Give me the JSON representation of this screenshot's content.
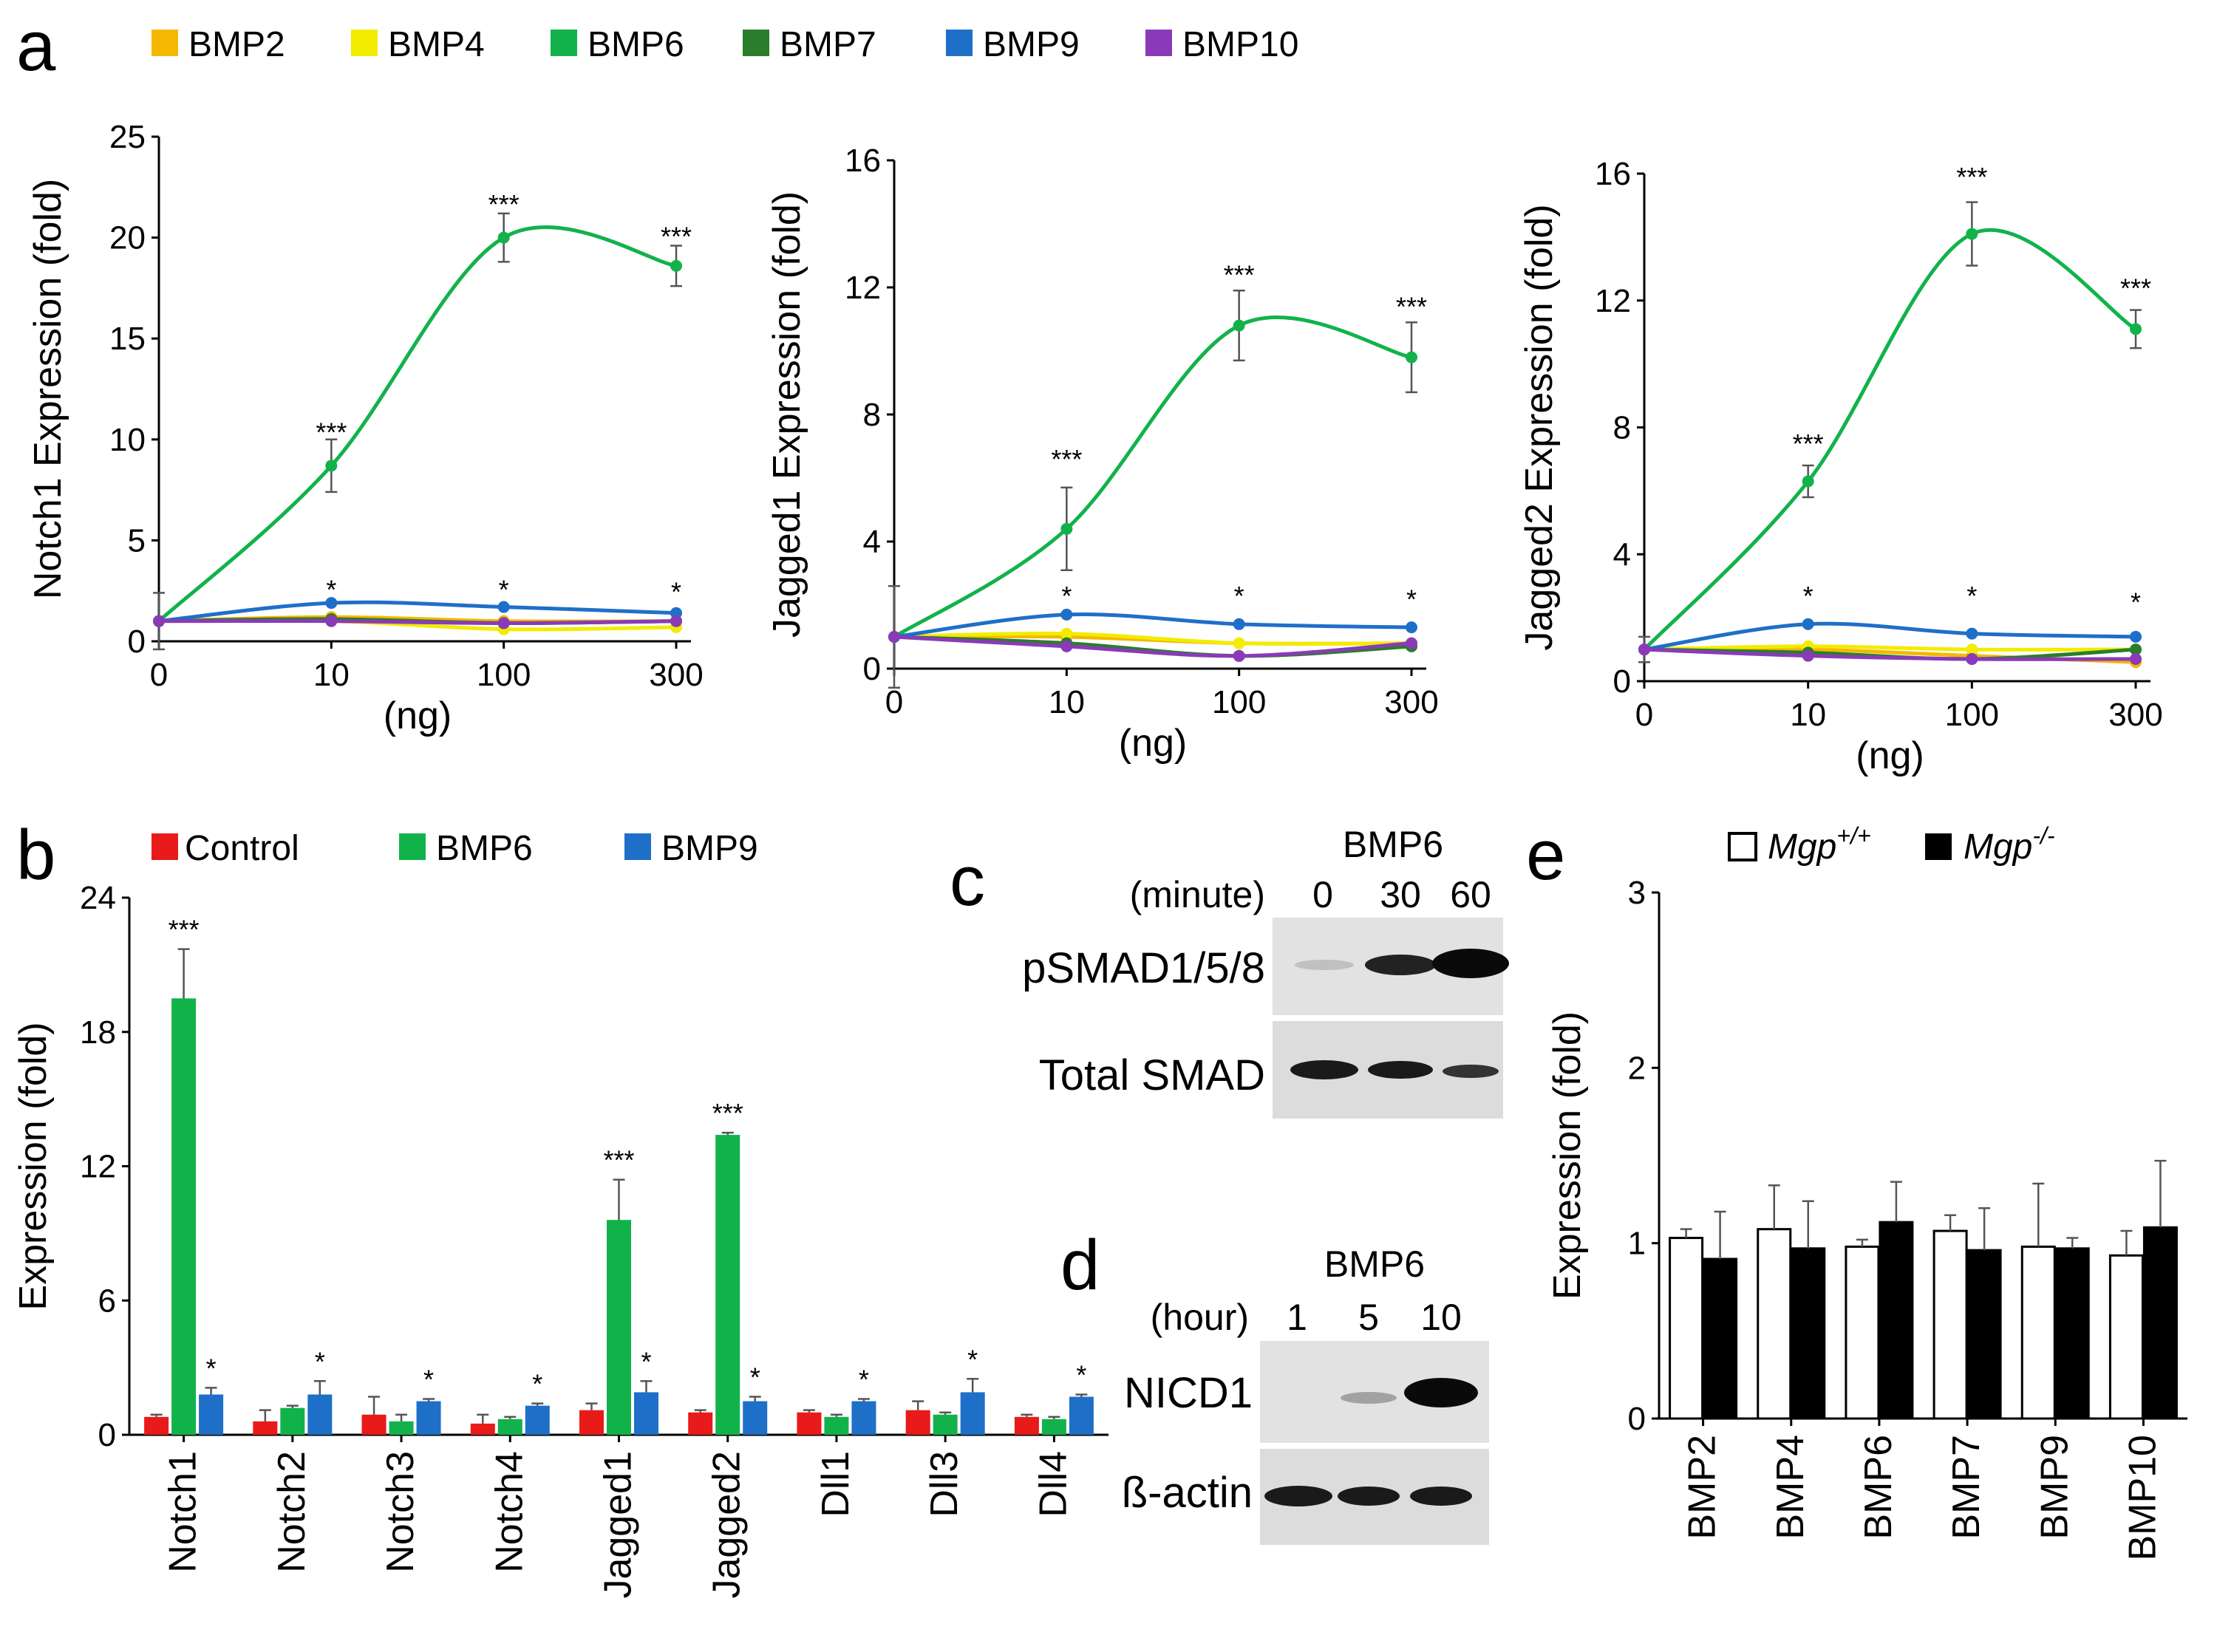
{
  "panels": {
    "a": "a",
    "b": "b",
    "c": "c",
    "d": "d",
    "e": "e"
  },
  "colors": {
    "BMP2": "#F5B800",
    "BMP4": "#F2EC00",
    "BMP6": "#12B24B",
    "BMP7": "#2A7D2A",
    "BMP9": "#1E6FC8",
    "BMP10": "#8A3AB9",
    "Control": "#E81A1A",
    "wt": "#ffffff",
    "ko": "#000000"
  },
  "panel_a_legend": [
    "BMP2",
    "BMP4",
    "BMP6",
    "BMP7",
    "BMP9",
    "BMP10"
  ],
  "panel_b_legend": [
    "Control",
    "BMP6",
    "BMP9"
  ],
  "panel_c": {
    "title": "BMP6",
    "time_label": "(minute)",
    "times": [
      "0",
      "30",
      "60"
    ],
    "rows": [
      "pSMAD1/5/8",
      "Total SMAD"
    ]
  },
  "panel_d": {
    "title": "BMP6",
    "time_label": "(hour)",
    "times": [
      "1",
      "5",
      "10"
    ],
    "rows": [
      "NICD1",
      "ß-actin"
    ]
  },
  "panel_e_legend": {
    "wt_base": "Mgp",
    "wt_sup": "+/+",
    "ko_base": "Mgp",
    "ko_sup": "-/-"
  },
  "chart_data": [
    {
      "id": "a1",
      "type": "line",
      "ylabel": "Notch1 Expression (fold)",
      "xlabel": "(ng)",
      "x": [
        "0",
        "10",
        "100",
        "300"
      ],
      "ylim": [
        0,
        25
      ],
      "yticks": [
        0,
        5,
        10,
        15,
        20,
        25
      ],
      "series": [
        {
          "name": "BMP2",
          "values": [
            1,
            1.2,
            1.0,
            1.0
          ]
        },
        {
          "name": "BMP4",
          "values": [
            1,
            1.0,
            0.6,
            0.7
          ]
        },
        {
          "name": "BMP6",
          "values": [
            1,
            8.7,
            20.0,
            18.6
          ],
          "err": [
            1.4,
            1.3,
            1.2,
            1.0
          ]
        },
        {
          "name": "BMP7",
          "values": [
            1,
            1.1,
            0.9,
            1.0
          ]
        },
        {
          "name": "BMP9",
          "values": [
            1,
            1.9,
            1.7,
            1.4
          ]
        },
        {
          "name": "BMP10",
          "values": [
            1,
            1.0,
            0.9,
            1.0
          ]
        }
      ],
      "annotations": [
        {
          "x": "10",
          "y": 9.9,
          "text": "***"
        },
        {
          "x": "100",
          "y": 21.2,
          "text": "***"
        },
        {
          "x": "300",
          "y": 19.6,
          "text": "***"
        },
        {
          "x": "10",
          "y": 2.1,
          "text": "*"
        },
        {
          "x": "100",
          "y": 2.1,
          "text": "*"
        },
        {
          "x": "300",
          "y": 2.0,
          "text": "*"
        }
      ]
    },
    {
      "id": "a2",
      "type": "line",
      "ylabel": "Jagged1 Expression (fold)",
      "xlabel": "(ng)",
      "x": [
        "0",
        "10",
        "100",
        "300"
      ],
      "ylim": [
        0,
        16
      ],
      "yticks": [
        0,
        4,
        8,
        12,
        16
      ],
      "series": [
        {
          "name": "BMP2",
          "values": [
            1,
            1.0,
            0.8,
            0.8
          ]
        },
        {
          "name": "BMP4",
          "values": [
            1,
            1.1,
            0.8,
            0.8
          ]
        },
        {
          "name": "BMP6",
          "values": [
            1,
            4.4,
            10.8,
            9.8
          ],
          "err": [
            1.6,
            1.3,
            1.1,
            1.1
          ]
        },
        {
          "name": "BMP7",
          "values": [
            1,
            0.8,
            0.4,
            0.7
          ]
        },
        {
          "name": "BMP9",
          "values": [
            1,
            1.7,
            1.4,
            1.3
          ]
        },
        {
          "name": "BMP10",
          "values": [
            1,
            0.7,
            0.4,
            0.8
          ]
        }
      ],
      "annotations": [
        {
          "x": "10",
          "y": 6.3,
          "text": "***"
        },
        {
          "x": "100",
          "y": 12.1,
          "text": "***"
        },
        {
          "x": "300",
          "y": 11.1,
          "text": "***"
        },
        {
          "x": "10",
          "y": 2.0,
          "text": "*"
        },
        {
          "x": "100",
          "y": 2.0,
          "text": "*"
        },
        {
          "x": "300",
          "y": 1.9,
          "text": "*"
        }
      ]
    },
    {
      "id": "a3",
      "type": "line",
      "ylabel": "Jagged2 Expression (fold)",
      "xlabel": "(ng)",
      "x": [
        "0",
        "10",
        "100",
        "300"
      ],
      "ylim": [
        0,
        16
      ],
      "yticks": [
        0,
        4,
        8,
        12,
        16
      ],
      "series": [
        {
          "name": "BMP2",
          "values": [
            1,
            1.0,
            0.8,
            0.6
          ]
        },
        {
          "name": "BMP4",
          "values": [
            1,
            1.1,
            1.0,
            1.0
          ]
        },
        {
          "name": "BMP6",
          "values": [
            1,
            6.3,
            14.1,
            11.1
          ],
          "err": [
            0.4,
            0.5,
            1.0,
            0.6
          ]
        },
        {
          "name": "BMP7",
          "values": [
            1,
            0.9,
            0.7,
            1.0
          ]
        },
        {
          "name": "BMP9",
          "values": [
            1,
            1.8,
            1.5,
            1.4
          ]
        },
        {
          "name": "BMP10",
          "values": [
            1,
            0.8,
            0.7,
            0.7
          ]
        }
      ],
      "annotations": [
        {
          "x": "10",
          "y": 7.2,
          "text": "***"
        },
        {
          "x": "100",
          "y": 15.6,
          "text": "***"
        },
        {
          "x": "300",
          "y": 12.1,
          "text": "***"
        },
        {
          "x": "10",
          "y": 2.4,
          "text": "*"
        },
        {
          "x": "100",
          "y": 2.4,
          "text": "*"
        },
        {
          "x": "300",
          "y": 2.2,
          "text": "*"
        }
      ]
    },
    {
      "id": "b",
      "type": "bar",
      "ylabel": "Expression (fold)",
      "categories": [
        "Notch1",
        "Notch2",
        "Notch3",
        "Notch4",
        "Jagged1",
        "Jagged2",
        "Dll1",
        "Dll3",
        "Dll4"
      ],
      "ylim": [
        0,
        24
      ],
      "yticks": [
        0,
        6,
        12,
        18,
        24
      ],
      "series": [
        {
          "name": "Control",
          "values": [
            0.8,
            0.6,
            0.9,
            0.5,
            1.1,
            1.0,
            1.0,
            1.1,
            0.8
          ],
          "err": [
            0.1,
            0.5,
            0.8,
            0.4,
            0.3,
            0.1,
            0.1,
            0.4,
            0.1
          ]
        },
        {
          "name": "BMP6",
          "values": [
            19.5,
            1.2,
            0.6,
            0.7,
            9.6,
            13.4,
            0.8,
            0.9,
            0.7
          ],
          "err": [
            2.2,
            0.1,
            0.3,
            0.1,
            1.8,
            0.1,
            0.1,
            0.1,
            0.1
          ]
        },
        {
          "name": "BMP9",
          "values": [
            1.8,
            1.8,
            1.5,
            1.3,
            1.9,
            1.5,
            1.5,
            1.9,
            1.7
          ],
          "err": [
            0.3,
            0.6,
            0.1,
            0.1,
            0.5,
            0.2,
            0.1,
            0.6,
            0.1
          ]
        }
      ],
      "annotations": [
        {
          "cat": 0,
          "series": 1,
          "text": "***"
        },
        {
          "cat": 4,
          "series": 1,
          "text": "***"
        },
        {
          "cat": 5,
          "series": 1,
          "text": "***"
        },
        {
          "cat": 0,
          "series": 2,
          "text": "*"
        },
        {
          "cat": 1,
          "series": 2,
          "text": "*"
        },
        {
          "cat": 2,
          "series": 2,
          "text": "*"
        },
        {
          "cat": 3,
          "series": 2,
          "text": "*"
        },
        {
          "cat": 4,
          "series": 2,
          "text": "*"
        },
        {
          "cat": 5,
          "series": 2,
          "text": "*"
        },
        {
          "cat": 6,
          "series": 2,
          "text": "*"
        },
        {
          "cat": 7,
          "series": 2,
          "text": "*"
        },
        {
          "cat": 8,
          "series": 2,
          "text": "*"
        }
      ]
    },
    {
      "id": "e",
      "type": "bar",
      "ylabel": "Expression (fold)",
      "categories": [
        "BMP2",
        "BMP4",
        "BMP6",
        "BMP7",
        "BMP9",
        "BMP10"
      ],
      "ylim": [
        0,
        3
      ],
      "yticks": [
        0,
        1,
        2,
        3
      ],
      "series": [
        {
          "name": "Mgp+/+",
          "values": [
            1.03,
            1.08,
            0.98,
            1.07,
            0.98,
            0.93
          ],
          "err": [
            0.05,
            0.25,
            0.04,
            0.09,
            0.36,
            0.14
          ]
        },
        {
          "name": "Mgp-/-",
          "values": [
            0.91,
            0.97,
            1.12,
            0.96,
            0.97,
            1.09
          ],
          "err": [
            0.27,
            0.27,
            0.23,
            0.24,
            0.06,
            0.38
          ]
        }
      ]
    }
  ]
}
